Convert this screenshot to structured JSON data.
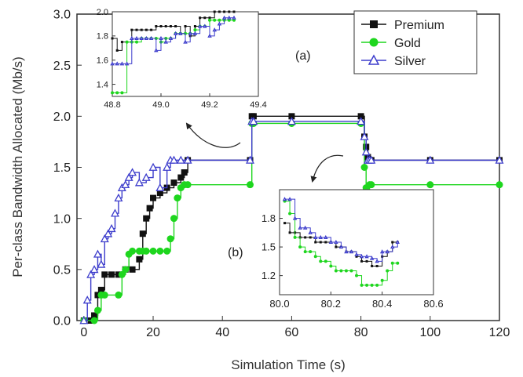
{
  "colors": {
    "premium": "#111111",
    "gold": "#1ed61e",
    "silver": "#3d3dcc",
    "axis": "#333333"
  },
  "chart_data": [
    {
      "type": "line",
      "xlabel": "Simulation Time (s)",
      "ylabel": "Per-class Bandwidth Allocated (Mb/s)",
      "xlim": [
        -2,
        120
      ],
      "ylim": [
        0,
        3.0
      ],
      "xticks": [
        0,
        20,
        40,
        60,
        80,
        100,
        120
      ],
      "yticks": [
        0.0,
        0.5,
        1.0,
        1.5,
        2.0,
        2.5,
        3.0
      ],
      "legend_position": "top-right",
      "series": [
        {
          "name": "Premium",
          "marker": "square",
          "color_key": "premium",
          "x": [
            0,
            2,
            3,
            4,
            5,
            6,
            8,
            10,
            12,
            14,
            16,
            17,
            18,
            19,
            20,
            22,
            24,
            26,
            28,
            29,
            30,
            48,
            48.5,
            49,
            60,
            80,
            81,
            81.5,
            82,
            82.5,
            83,
            100,
            120
          ],
          "y": [
            0,
            0,
            0.05,
            0.25,
            0.3,
            0.45,
            0.45,
            0.45,
            0.5,
            0.5,
            0.6,
            0.85,
            1.0,
            1.1,
            1.2,
            1.25,
            1.3,
            1.35,
            1.4,
            1.45,
            1.57,
            1.57,
            2.0,
            2.0,
            2.0,
            2.0,
            1.8,
            1.7,
            1.6,
            1.57,
            1.57,
            1.57,
            1.57
          ]
        },
        {
          "name": "Gold",
          "marker": "circle",
          "color_key": "gold",
          "x": [
            0,
            3,
            4,
            5,
            6,
            10,
            11,
            12,
            13,
            14,
            16,
            17,
            18,
            20,
            22,
            24,
            25,
            26,
            27,
            28,
            29,
            30,
            48,
            48.5,
            49,
            60,
            80,
            81,
            81.5,
            82,
            82.5,
            83,
            100,
            120
          ],
          "y": [
            0,
            0,
            0.1,
            0.25,
            0.25,
            0.25,
            0.45,
            0.5,
            0.65,
            0.68,
            0.68,
            0.68,
            0.68,
            0.68,
            0.68,
            0.68,
            0.8,
            1.0,
            1.2,
            1.3,
            1.33,
            1.33,
            1.33,
            1.93,
            1.93,
            1.93,
            1.93,
            1.5,
            1.3,
            1.15,
            1.33,
            1.33,
            1.33,
            1.33
          ]
        },
        {
          "name": "Silver",
          "marker": "triangle",
          "color_key": "silver",
          "x": [
            0,
            1,
            2,
            3,
            4,
            5,
            6,
            7,
            8,
            9,
            10,
            11,
            12,
            13,
            14,
            16,
            18,
            20,
            22,
            24,
            25,
            26,
            28,
            30,
            48,
            48.5,
            49,
            60,
            80,
            81,
            81.5,
            82,
            82.5,
            83,
            100,
            120
          ],
          "y": [
            0,
            0.2,
            0.45,
            0.5,
            0.65,
            0.55,
            0.8,
            0.85,
            0.9,
            1.05,
            1.2,
            1.3,
            1.33,
            1.4,
            1.45,
            1.35,
            1.4,
            1.5,
            1.3,
            1.5,
            1.57,
            1.57,
            1.57,
            1.57,
            1.57,
            1.95,
            1.95,
            1.95,
            1.95,
            1.8,
            1.65,
            1.57,
            1.57,
            1.57,
            1.57,
            1.57
          ]
        }
      ]
    },
    {
      "type": "line",
      "panel_label": "(a)",
      "xlim": [
        48.8,
        49.4
      ],
      "ylim": [
        1.3,
        2.0
      ],
      "xticks": [
        48.8,
        49.0,
        49.2,
        49.4
      ],
      "xtick_labels": [
        "48.8",
        "49.0",
        "49.2",
        "49.4"
      ],
      "yticks": [
        1.4,
        1.6,
        1.8,
        2.0
      ],
      "ytick_labels": [
        "1.4",
        "1.6",
        "1.8",
        "2.0"
      ],
      "series": [
        {
          "name": "Premium",
          "color_key": "premium",
          "x": [
            48.8,
            48.82,
            48.84,
            48.86,
            48.88,
            48.9,
            48.92,
            48.94,
            48.96,
            48.98,
            49.0,
            49.02,
            49.04,
            49.06,
            49.08,
            49.1,
            49.12,
            49.14,
            49.16,
            49.18,
            49.2,
            49.22,
            49.24,
            49.26,
            49.28,
            49.3
          ],
          "y": [
            1.78,
            1.68,
            1.75,
            1.75,
            1.85,
            1.85,
            1.85,
            1.85,
            1.85,
            1.88,
            1.88,
            1.88,
            1.88,
            1.88,
            1.82,
            1.88,
            1.8,
            1.88,
            1.95,
            1.95,
            1.95,
            2.0,
            2.0,
            2.0,
            2.0,
            2.0
          ]
        },
        {
          "name": "Gold",
          "color_key": "gold",
          "x": [
            48.8,
            48.82,
            48.84,
            48.86,
            48.88,
            48.9,
            48.92,
            48.94,
            48.96,
            48.98,
            49.0,
            49.02,
            49.04,
            49.06,
            49.08,
            49.1,
            49.12,
            49.14,
            49.16,
            49.18,
            49.2,
            49.22,
            49.24,
            49.26,
            49.28,
            49.3
          ],
          "y": [
            1.33,
            1.33,
            1.33,
            1.75,
            1.75,
            1.75,
            1.78,
            1.78,
            1.78,
            1.78,
            1.75,
            1.78,
            1.78,
            1.82,
            1.82,
            1.82,
            1.82,
            1.85,
            1.88,
            1.88,
            1.93,
            1.93,
            1.93,
            1.93,
            1.93,
            1.93
          ]
        },
        {
          "name": "Silver",
          "color_key": "silver",
          "x": [
            48.8,
            48.82,
            48.84,
            48.86,
            48.88,
            48.9,
            48.92,
            48.94,
            48.96,
            48.98,
            49.0,
            49.02,
            49.04,
            49.06,
            49.08,
            49.1,
            49.12,
            49.14,
            49.16,
            49.18,
            49.2,
            49.22,
            49.24,
            49.26,
            49.28,
            49.3
          ],
          "y": [
            1.57,
            1.57,
            1.57,
            1.57,
            1.78,
            1.78,
            1.78,
            1.78,
            1.78,
            1.68,
            1.78,
            1.75,
            1.78,
            1.82,
            1.82,
            1.75,
            1.82,
            1.82,
            1.88,
            1.88,
            1.8,
            1.85,
            1.9,
            1.95,
            1.95,
            1.95
          ]
        }
      ]
    },
    {
      "type": "line",
      "panel_label": "(b)",
      "xlim": [
        80.0,
        80.6
      ],
      "ylim": [
        1.0,
        2.1
      ],
      "xticks": [
        80.0,
        80.2,
        80.4,
        80.6
      ],
      "xtick_labels": [
        "80.0",
        "80.2",
        "80.4",
        "80.6"
      ],
      "yticks": [
        1.2,
        1.5,
        1.8
      ],
      "ytick_labels": [
        "1.2",
        "1.5",
        "1.8"
      ],
      "series": [
        {
          "name": "Premium",
          "color_key": "premium",
          "x": [
            80.02,
            80.04,
            80.06,
            80.08,
            80.1,
            80.12,
            80.14,
            80.16,
            80.18,
            80.2,
            80.22,
            80.24,
            80.26,
            80.28,
            80.3,
            80.32,
            80.34,
            80.36,
            80.38,
            80.4,
            80.42,
            80.44,
            80.46
          ],
          "y": [
            1.75,
            1.65,
            1.65,
            1.6,
            1.6,
            1.6,
            1.55,
            1.55,
            1.55,
            1.55,
            1.5,
            1.5,
            1.45,
            1.45,
            1.4,
            1.35,
            1.35,
            1.3,
            1.3,
            1.4,
            1.45,
            1.55,
            1.55
          ]
        },
        {
          "name": "Gold",
          "color_key": "gold",
          "x": [
            80.02,
            80.04,
            80.06,
            80.08,
            80.1,
            80.12,
            80.14,
            80.16,
            80.18,
            80.2,
            80.22,
            80.24,
            80.26,
            80.28,
            80.3,
            80.32,
            80.34,
            80.36,
            80.38,
            80.4,
            80.42,
            80.44,
            80.46
          ],
          "y": [
            1.98,
            1.85,
            1.6,
            1.5,
            1.45,
            1.45,
            1.4,
            1.35,
            1.35,
            1.3,
            1.25,
            1.25,
            1.25,
            1.25,
            1.2,
            1.1,
            1.1,
            1.1,
            1.1,
            1.15,
            1.25,
            1.33,
            1.33
          ]
        },
        {
          "name": "Silver",
          "color_key": "silver",
          "x": [
            80.02,
            80.04,
            80.06,
            80.08,
            80.1,
            80.12,
            80.14,
            80.16,
            80.18,
            80.2,
            80.22,
            80.24,
            80.26,
            80.28,
            80.3,
            80.32,
            80.34,
            80.36,
            80.38,
            80.4,
            80.42,
            80.44,
            80.46
          ],
          "y": [
            2.0,
            2.0,
            1.8,
            1.7,
            1.7,
            1.65,
            1.6,
            1.6,
            1.6,
            1.55,
            1.55,
            1.5,
            1.45,
            1.45,
            1.42,
            1.4,
            1.4,
            1.38,
            1.35,
            1.45,
            1.45,
            1.5,
            1.55
          ]
        }
      ]
    }
  ]
}
